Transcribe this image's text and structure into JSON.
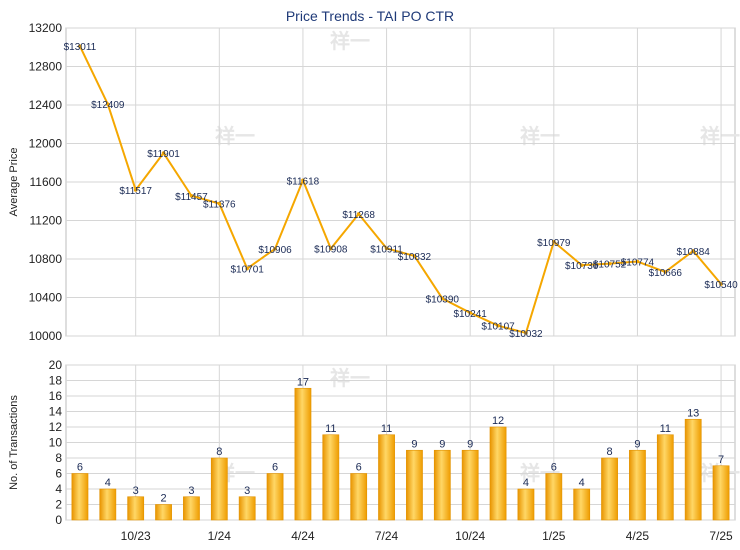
{
  "chart_data": [
    {
      "type": "line",
      "title": "Price Trends - TAI PO CTR",
      "ylabel": "Average Price",
      "ylim": [
        10000,
        13200
      ],
      "yticks": [
        10000,
        10400,
        10800,
        11200,
        11600,
        12000,
        12400,
        12800,
        13200
      ],
      "grid": true,
      "color": "#f5a700",
      "values": [
        13011,
        12409,
        11517,
        11901,
        11457,
        11376,
        10701,
        10906,
        11618,
        10908,
        11268,
        10911,
        10832,
        10390,
        10241,
        10107,
        10032,
        10979,
        10736,
        10752,
        10774,
        10666,
        10884,
        10540
      ],
      "data_labels": [
        "$13011",
        "$12409",
        "$11517",
        "$11901",
        "$11457",
        "$11376",
        "$10701",
        "$10906",
        "$11618",
        "$10908",
        "$11268",
        "$10911",
        "$10832",
        "$10390",
        "$10241",
        "$10107",
        "$10032",
        "$10979",
        "$10736",
        "$10752",
        "$10774",
        "$10666",
        "$10884",
        "$10540"
      ]
    },
    {
      "type": "bar",
      "ylabel": "No. of Transactions",
      "ylim": [
        0,
        20
      ],
      "yticks": [
        0,
        2,
        4,
        6,
        8,
        10,
        12,
        14,
        16,
        18,
        20
      ],
      "grid": true,
      "color": "#f5a700",
      "values": [
        6,
        4,
        3,
        2,
        3,
        8,
        3,
        6,
        17,
        11,
        6,
        11,
        9,
        9,
        9,
        12,
        4,
        6,
        4,
        8,
        9,
        11,
        13,
        7
      ],
      "x_tick_labels": [
        "10/23",
        "1/24",
        "4/24",
        "7/24",
        "10/24",
        "1/25",
        "4/25",
        "7/25"
      ],
      "x_tick_indices": [
        2,
        5,
        8,
        11,
        14,
        17,
        20,
        23
      ]
    }
  ],
  "watermark": "祥一"
}
